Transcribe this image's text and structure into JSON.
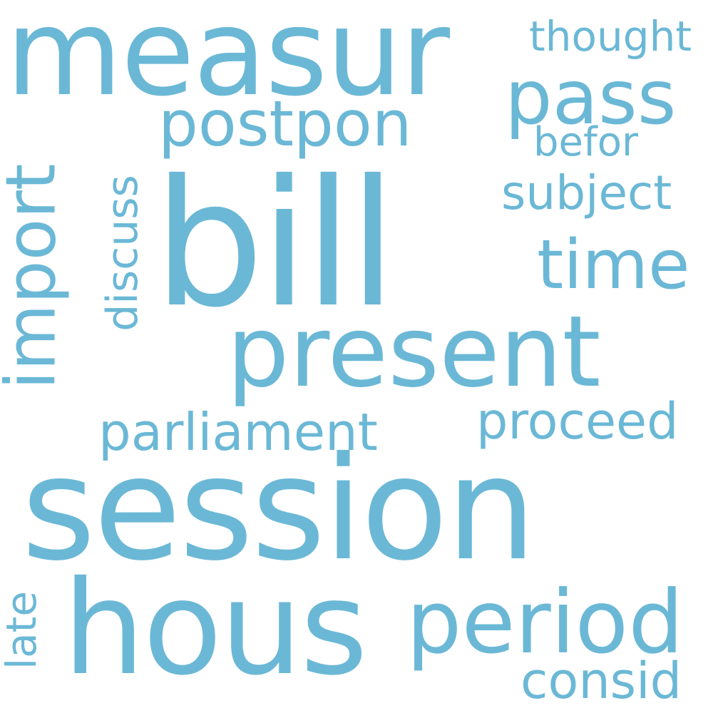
{
  "word_cloud": {
    "color": "#6bb8d6",
    "background": "#ffffff",
    "words": {
      "measur": "measur",
      "thought": "thought",
      "pass": "pass",
      "postpon": "postpon",
      "befor": "befor",
      "bill": "bill",
      "subject": "subject",
      "time": "time",
      "present": "present",
      "import": "import",
      "discuss": "discuss",
      "proceed": "proceed",
      "parliament": "parliament",
      "session": "session",
      "hous": "hous",
      "period": "period",
      "late": "late",
      "consid": "consid"
    }
  }
}
